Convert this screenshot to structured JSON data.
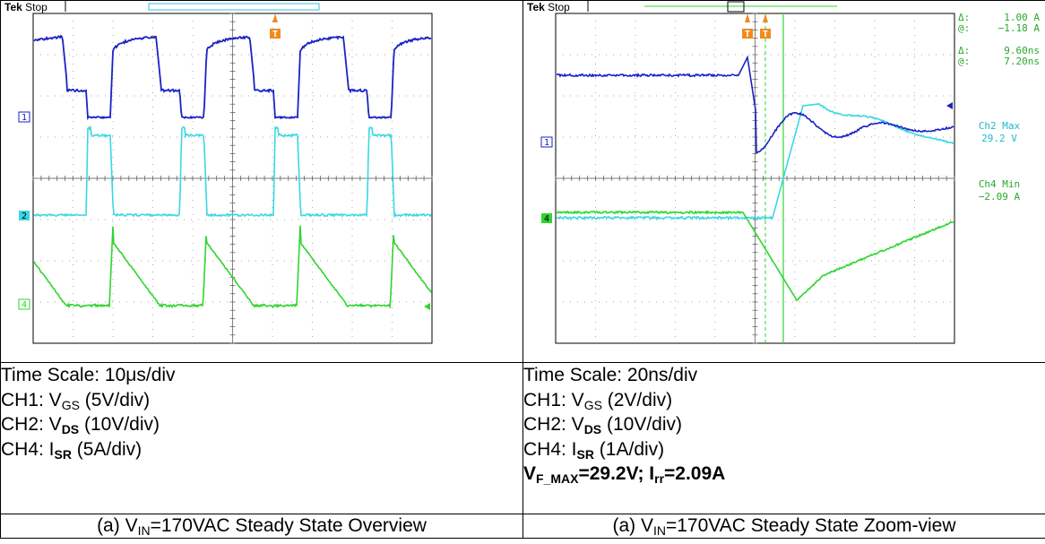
{
  "left_panel": {
    "scope": {
      "brand": "Tek",
      "state": "Stop",
      "trigger_marker": "T",
      "channel_markers": [
        "1",
        "2",
        "4"
      ]
    },
    "time_scale": "Time Scale: 10μs/div",
    "ch1": {
      "prefix": "CH1: V",
      "sub": "GS",
      "suffix": " (5V/div)"
    },
    "ch2": {
      "prefix": "CH2: V",
      "sub": "DS",
      "suffix": " (10V/div)"
    },
    "ch4": {
      "prefix": "CH4: I",
      "sub": "SR",
      "suffix": " (5A/div)"
    },
    "caption": {
      "prefix": "(a) V",
      "sub": "IN",
      "suffix": "=170VAC Steady State Overview"
    }
  },
  "right_panel": {
    "scope": {
      "brand": "Tek",
      "state": "Stop",
      "trigger_marker": "T",
      "channel_markers": [
        "1",
        "4"
      ],
      "readouts": {
        "delta_label": "Δ:",
        "at_label": "@:",
        "delta_a": "1.00 A",
        "at_a": "−1.18 A",
        "delta_t": "9.60ns",
        "at_t": "7.20ns",
        "ch2_max_label": "Ch2 Max",
        "ch2_max_value": "29.2 V",
        "ch4_min_label": "Ch4 Min",
        "ch4_min_value": "−2.09 A"
      }
    },
    "time_scale": "Time Scale: 20ns/div",
    "ch1": {
      "prefix": "CH1: V",
      "sub": "GS",
      "suffix": " (2V/div)"
    },
    "ch2": {
      "prefix": "CH2: V",
      "sub": "DS",
      "suffix": " (10V/div)"
    },
    "ch4": {
      "prefix": "CH4: I",
      "sub": "SR",
      "suffix": " (1A/div)"
    },
    "summary": {
      "part1": "V",
      "sub1": "F_MAX",
      "part2": "=29.2V; I",
      "sub2": "rr",
      "part3": "=2.09A"
    },
    "caption": {
      "prefix": "(a) V",
      "sub": "IN",
      "suffix": "=170VAC Steady State Zoom-view"
    }
  },
  "colors": {
    "ch1": "#1a23c4",
    "ch2": "#39d7e3",
    "ch4": "#2fd52f",
    "trigger": "#f08a1e"
  }
}
